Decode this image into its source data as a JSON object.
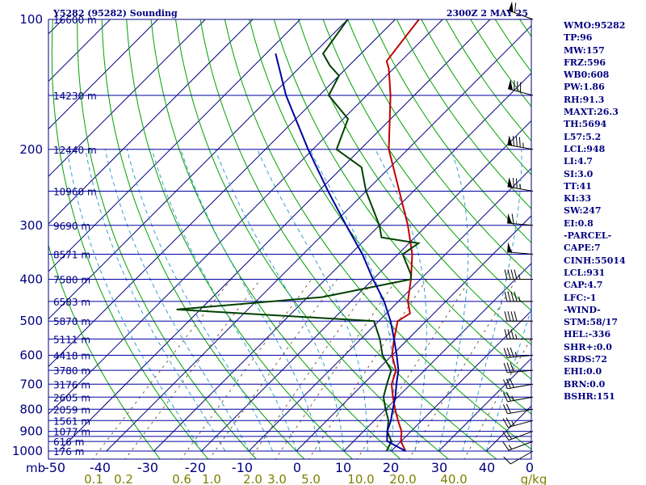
{
  "chart_data": {
    "type": "skew-t log-p sounding",
    "title_left": "Y5282 (95282) Sounding",
    "title_right": "2300Z  2 MAY 25",
    "pressure_tick_labels": [
      "100",
      "200",
      "300",
      "400",
      "500",
      "600",
      "700",
      "800",
      "900",
      "1000"
    ],
    "pressure_unit_label": "mb",
    "temperature_axis_labels": [
      "-50",
      "-40",
      "-30",
      "-20",
      "-10",
      "0",
      "10",
      "20",
      "30",
      "40",
      "0"
    ],
    "mixing_ratio_labels": [
      "0.1",
      "0.2",
      "0.6",
      "1.0",
      "2.0",
      "3.0",
      "5.0",
      "10.0",
      "20.0",
      "40.0"
    ],
    "mixing_ratio_unit": "g/kg",
    "grid": true,
    "isobars_mb": [
      100,
      150,
      200,
      250,
      300,
      350,
      400,
      450,
      500,
      550,
      600,
      650,
      700,
      750,
      800,
      850,
      900,
      925,
      950,
      1000
    ],
    "height_labels": [
      {
        "p": 100,
        "h": "16600 m"
      },
      {
        "p": 150,
        "h": "14230 m"
      },
      {
        "p": 200,
        "h": "12440 m"
      },
      {
        "p": 250,
        "h": "10960 m"
      },
      {
        "p": 300,
        "h": "9690 m"
      },
      {
        "p": 350,
        "h": "8571 m"
      },
      {
        "p": 400,
        "h": "7580 m"
      },
      {
        "p": 450,
        "h": "6583 m"
      },
      {
        "p": 500,
        "h": "5870 m"
      },
      {
        "p": 550,
        "h": "5111 m"
      },
      {
        "p": 600,
        "h": "4418 m"
      },
      {
        "p": 650,
        "h": "3780 m"
      },
      {
        "p": 700,
        "h": "3176 m"
      },
      {
        "p": 750,
        "h": "2605 m"
      },
      {
        "p": 800,
        "h": "2059 m"
      },
      {
        "p": 850,
        "h": "1561 m"
      },
      {
        "p": 900,
        "h": "1077 m"
      },
      {
        "p": 950,
        "h": "616 m"
      },
      {
        "p": 1000,
        "h": "176 m"
      }
    ],
    "temperature_profile": [
      {
        "p": 1000,
        "t": 23
      },
      {
        "p": 950,
        "t": 20
      },
      {
        "p": 900,
        "t": 18
      },
      {
        "p": 850,
        "t": 15
      },
      {
        "p": 800,
        "t": 12
      },
      {
        "p": 750,
        "t": 9
      },
      {
        "p": 700,
        "t": 6
      },
      {
        "p": 650,
        "t": 4
      },
      {
        "p": 600,
        "t": 0
      },
      {
        "p": 550,
        "t": -3
      },
      {
        "p": 500,
        "t": -6
      },
      {
        "p": 480,
        "t": -5
      },
      {
        "p": 450,
        "t": -8
      },
      {
        "p": 400,
        "t": -12
      },
      {
        "p": 350,
        "t": -17
      },
      {
        "p": 300,
        "t": -24
      },
      {
        "p": 250,
        "t": -33
      },
      {
        "p": 200,
        "t": -44
      },
      {
        "p": 150,
        "t": -55
      },
      {
        "p": 130,
        "t": -61
      },
      {
        "p": 125,
        "t": -63
      },
      {
        "p": 100,
        "t": -65
      }
    ],
    "dewpoint_profile": [
      {
        "p": 1000,
        "t": 19
      },
      {
        "p": 950,
        "t": 18
      },
      {
        "p": 900,
        "t": 15
      },
      {
        "p": 850,
        "t": 13
      },
      {
        "p": 800,
        "t": 10
      },
      {
        "p": 750,
        "t": 7
      },
      {
        "p": 700,
        "t": 5
      },
      {
        "p": 650,
        "t": 3
      },
      {
        "p": 600,
        "t": -2
      },
      {
        "p": 550,
        "t": -6
      },
      {
        "p": 500,
        "t": -11
      },
      {
        "p": 470,
        "t": -55
      },
      {
        "p": 440,
        "t": -27
      },
      {
        "p": 400,
        "t": -12
      },
      {
        "p": 390,
        "t": -13
      },
      {
        "p": 350,
        "t": -19
      },
      {
        "p": 330,
        "t": -18
      },
      {
        "p": 320,
        "t": -27
      },
      {
        "p": 300,
        "t": -30
      },
      {
        "p": 250,
        "t": -40
      },
      {
        "p": 220,
        "t": -46
      },
      {
        "p": 200,
        "t": -55
      },
      {
        "p": 170,
        "t": -59
      },
      {
        "p": 150,
        "t": -68
      },
      {
        "p": 135,
        "t": -70
      },
      {
        "p": 128,
        "t": -74
      },
      {
        "p": 120,
        "t": -78
      },
      {
        "p": 100,
        "t": -80
      }
    ],
    "parcel_profile": [
      {
        "p": 1000,
        "t": 23
      },
      {
        "p": 948,
        "t": 17
      },
      {
        "p": 900,
        "t": 15
      },
      {
        "p": 850,
        "t": 13.5
      },
      {
        "p": 800,
        "t": 11.5
      },
      {
        "p": 750,
        "t": 9.5
      },
      {
        "p": 700,
        "t": 7
      },
      {
        "p": 650,
        "t": 4.5
      },
      {
        "p": 600,
        "t": 1
      },
      {
        "p": 550,
        "t": -3
      },
      {
        "p": 500,
        "t": -7.5
      },
      {
        "p": 450,
        "t": -13
      },
      {
        "p": 400,
        "t": -20
      },
      {
        "p": 350,
        "t": -27.5
      },
      {
        "p": 300,
        "t": -37
      },
      {
        "p": 250,
        "t": -48
      },
      {
        "p": 200,
        "t": -61
      },
      {
        "p": 150,
        "t": -77
      },
      {
        "p": 120,
        "t": -88
      }
    ],
    "wind_profile_kt": [
      {
        "p": 1000,
        "dir": 240,
        "spd": 10
      },
      {
        "p": 950,
        "dir": 250,
        "spd": 15
      },
      {
        "p": 900,
        "dir": 250,
        "spd": 20
      },
      {
        "p": 850,
        "dir": 255,
        "spd": 25
      },
      {
        "p": 800,
        "dir": 260,
        "spd": 20
      },
      {
        "p": 750,
        "dir": 260,
        "spd": 25
      },
      {
        "p": 700,
        "dir": 260,
        "spd": 30
      },
      {
        "p": 650,
        "dir": 265,
        "spd": 30
      },
      {
        "p": 600,
        "dir": 265,
        "spd": 35
      },
      {
        "p": 550,
        "dir": 270,
        "spd": 35
      },
      {
        "p": 500,
        "dir": 270,
        "spd": 40
      },
      {
        "p": 450,
        "dir": 270,
        "spd": 45
      },
      {
        "p": 400,
        "dir": 270,
        "spd": 45
      },
      {
        "p": 350,
        "dir": 275,
        "spd": 50
      },
      {
        "p": 300,
        "dir": 275,
        "spd": 60
      },
      {
        "p": 250,
        "dir": 280,
        "spd": 75
      },
      {
        "p": 200,
        "dir": 280,
        "spd": 85
      },
      {
        "p": 150,
        "dir": 285,
        "spd": 80
      },
      {
        "p": 100,
        "dir": 290,
        "spd": 60
      }
    ],
    "indices": [
      "WMO:95282",
      "TP:96",
      "MW:157",
      "FRZ:596",
      "WB0:608",
      "PW:1.86",
      "RH:91.3",
      "MAXT:26.3",
      "TH:5694",
      "L57:5.2",
      "LCL:948",
      "LI:4.7",
      "SI:3.0",
      "TT:41",
      "KI:33",
      "SW:247",
      "EI:0.8",
      "-PARCEL-",
      "CAPE:7",
      "CINH:55014",
      "LCL:931",
      "CAP:4.7",
      "LFC:-1",
      "-WIND-",
      "STM:58/17",
      "HEL:-336",
      "SHR+:0.0",
      "SRDS:72",
      "EHI:0.0",
      "BRN:0.0",
      "BSHR:151"
    ]
  },
  "colors": {
    "isobar": "#0000a0",
    "temperature": "#c00000",
    "dewpoint": "#004000",
    "parcel": "#0000a0",
    "dry_adiabat": "#00a000",
    "moist_adiabat": "#30a0d0",
    "mixing_ratio": "#806040",
    "text": "#000080",
    "mixing_text": "#808000"
  }
}
